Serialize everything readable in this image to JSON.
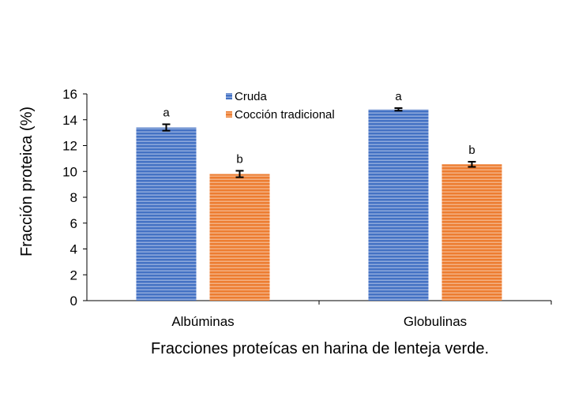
{
  "chart_data": {
    "type": "bar",
    "categories": [
      "Albúminas",
      "Globulinas"
    ],
    "series": [
      {
        "name": "Cruda",
        "values": [
          13.4,
          14.8
        ],
        "errors": [
          0.25,
          0.1
        ],
        "sig": [
          "a",
          "a"
        ],
        "color": "#4472C4"
      },
      {
        "name": "Cocción tradicional",
        "values": [
          9.8,
          10.55
        ],
        "errors": [
          0.25,
          0.2
        ],
        "sig": [
          "b",
          "b"
        ],
        "color": "#ED7D31"
      }
    ],
    "xlabel": "Fracciones proteícas en harina de lenteja verde.",
    "ylabel": "Fracción proteica (%)",
    "ylim": [
      0,
      16
    ],
    "yticks": [
      "0",
      "2",
      "4",
      "6",
      "8",
      "10",
      "12",
      "14",
      "16"
    ],
    "grid": false,
    "legend_position": "top-center"
  }
}
